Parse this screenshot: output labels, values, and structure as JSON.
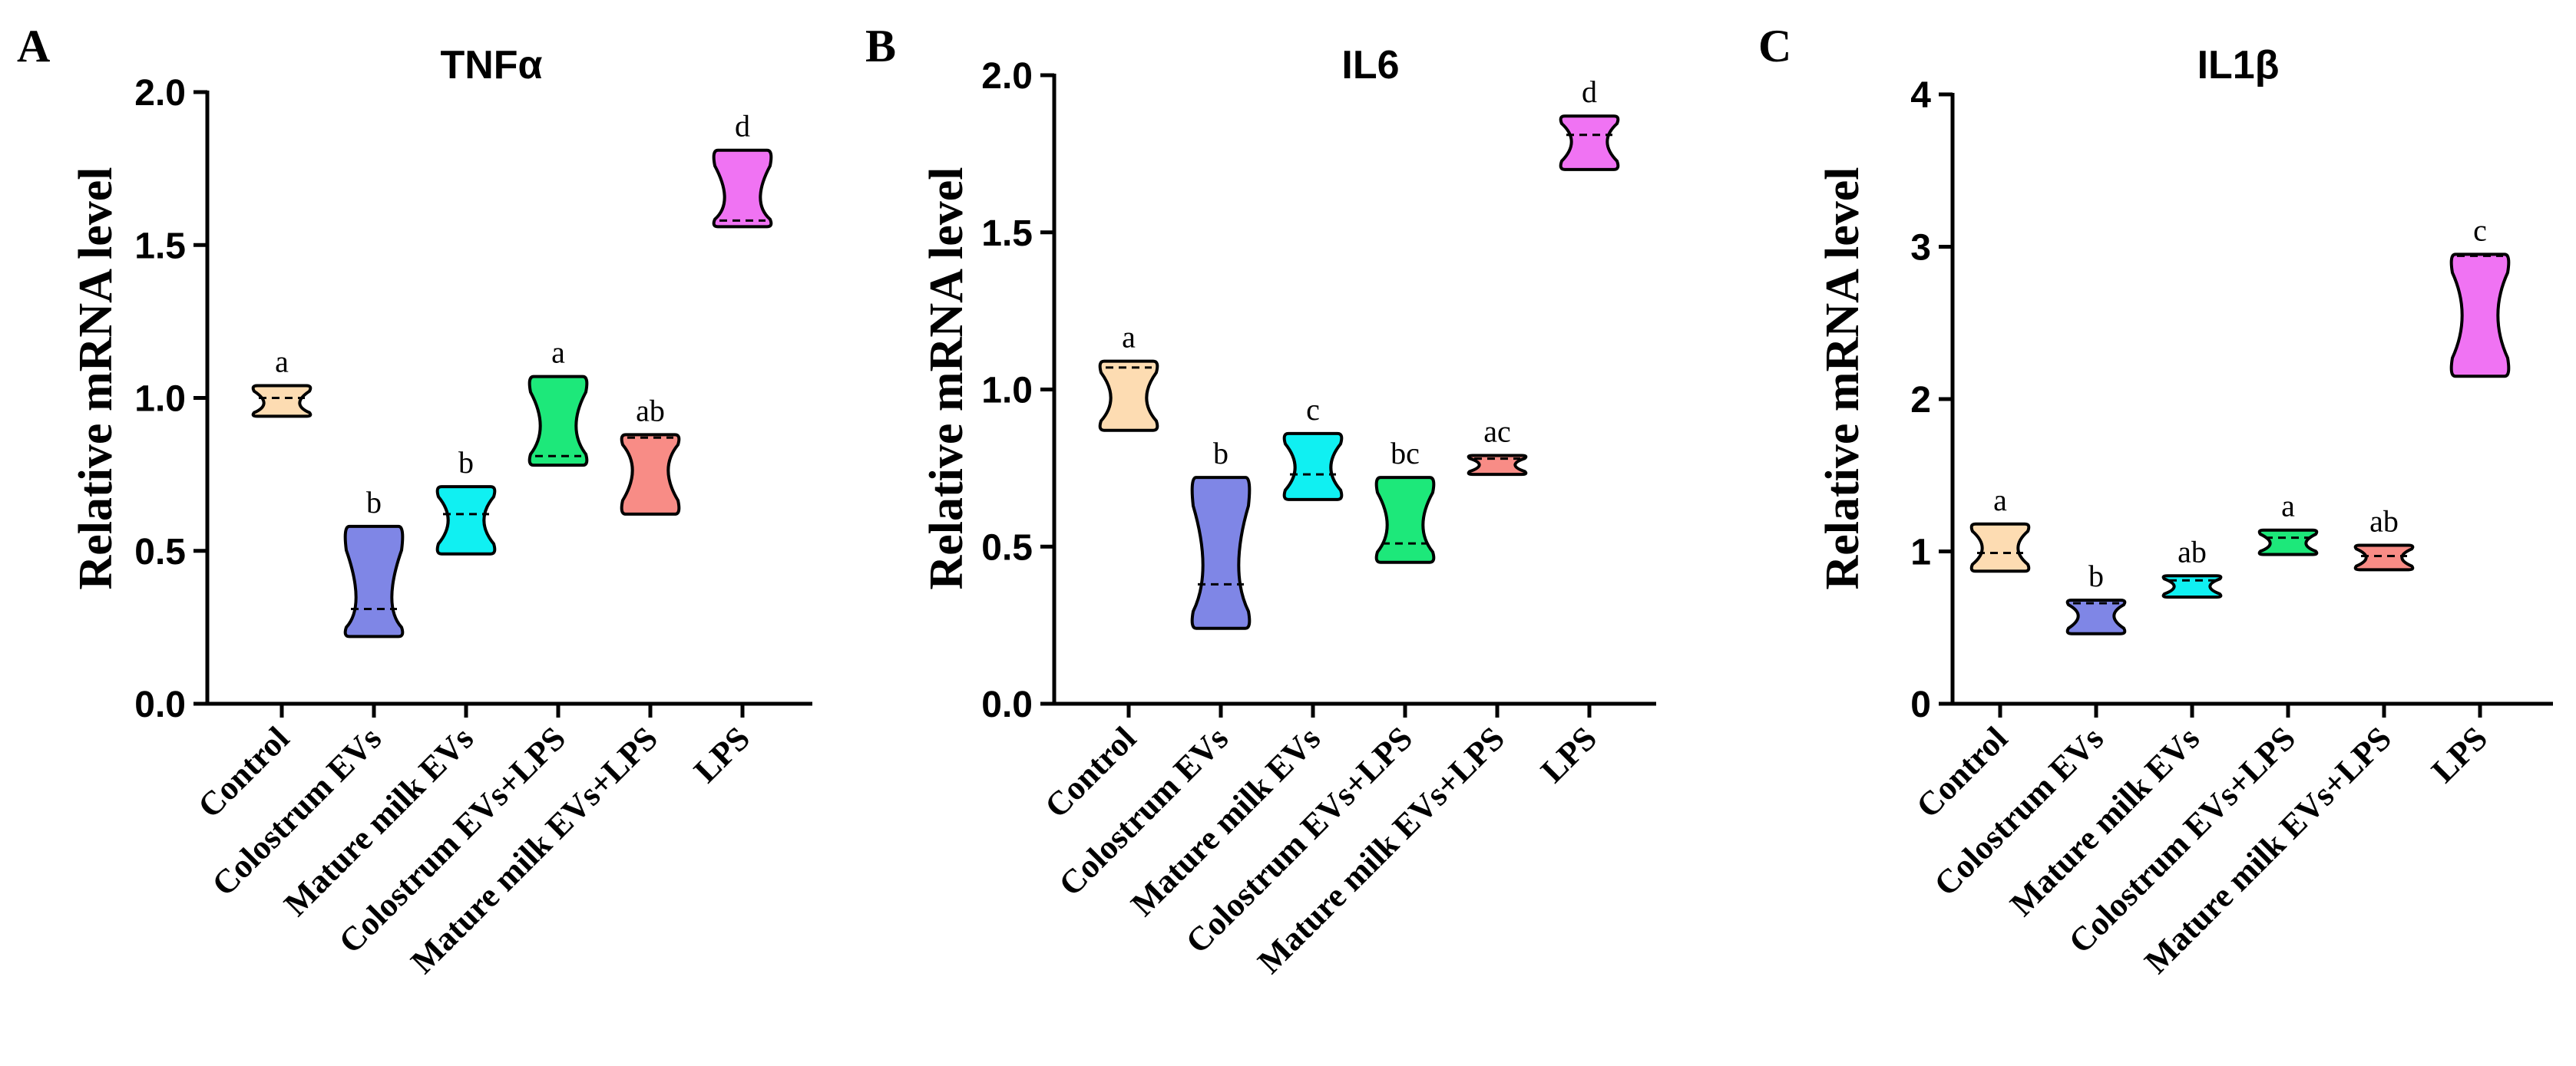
{
  "chart_data": [
    {
      "panel": "A",
      "type": "violin",
      "title": "TNFα",
      "ylabel": "Relative mRNA level",
      "ylim": [
        0,
        2.0
      ],
      "ticks": [
        0.0,
        0.5,
        1.0,
        1.5,
        2.0
      ],
      "tick_labels": [
        "0.0",
        "0.5",
        "1.0",
        "1.5",
        "2.0"
      ],
      "categories": [
        "Control",
        "Colostrum EVs",
        "Mature milk EVs",
        "Colostrum EVs+LPS",
        "Mature milk EVs+LPS",
        "LPS"
      ],
      "groups": [
        {
          "min": 0.94,
          "max": 1.04,
          "median": 1.0,
          "waist": 0.98,
          "sig": "a",
          "color": "#FDDCB2"
        },
        {
          "min": 0.22,
          "max": 0.58,
          "median": 0.31,
          "waist": 0.32,
          "sig": "b",
          "color": "#7F86E6"
        },
        {
          "min": 0.49,
          "max": 0.71,
          "median": 0.62,
          "waist": 0.6,
          "sig": "b",
          "color": "#10F0F2"
        },
        {
          "min": 0.78,
          "max": 1.07,
          "median": 0.81,
          "waist": 0.9,
          "sig": "a",
          "color": "#1DE87A"
        },
        {
          "min": 0.62,
          "max": 0.88,
          "median": 0.87,
          "waist": 0.77,
          "sig": "ab",
          "color": "#F88C86"
        },
        {
          "min": 1.56,
          "max": 1.81,
          "median": 1.58,
          "waist": 1.64,
          "sig": "d",
          "color": "#F073F3"
        }
      ]
    },
    {
      "panel": "B",
      "type": "violin",
      "title": "IL6",
      "ylabel": "Relative mRNA level",
      "ylim": [
        0,
        2.0
      ],
      "ticks": [
        0.0,
        0.5,
        1.0,
        1.5,
        2.0
      ],
      "tick_labels": [
        "0.0",
        "0.5",
        "1.0",
        "1.5",
        "2.0"
      ],
      "categories": [
        "Control",
        "Colostrum EVs",
        "Mature milk EVs",
        "Colostrum EVs+LPS",
        "Mature milk EVs+LPS",
        "LPS"
      ],
      "groups": [
        {
          "min": 0.87,
          "max": 1.09,
          "median": 1.07,
          "waist": 0.97,
          "sig": "a",
          "color": "#FDDCB2"
        },
        {
          "min": 0.24,
          "max": 0.72,
          "median": 0.38,
          "waist": 0.42,
          "sig": "b",
          "color": "#7F86E6"
        },
        {
          "min": 0.65,
          "max": 0.86,
          "median": 0.73,
          "waist": 0.75,
          "sig": "c",
          "color": "#10F0F2"
        },
        {
          "min": 0.45,
          "max": 0.72,
          "median": 0.51,
          "waist": 0.56,
          "sig": "bc",
          "color": "#1DE87A"
        },
        {
          "min": 0.73,
          "max": 0.79,
          "median": 0.78,
          "waist": 0.76,
          "sig": "ac",
          "color": "#F88C86"
        },
        {
          "min": 1.7,
          "max": 1.87,
          "median": 1.81,
          "waist": 1.79,
          "sig": "d",
          "color": "#F073F3"
        }
      ]
    },
    {
      "panel": "C",
      "type": "violin",
      "title": "IL1β",
      "ylabel": "Relative mRNA level",
      "ylim": [
        0,
        4
      ],
      "ticks": [
        0,
        1,
        2,
        3,
        4
      ],
      "tick_labels": [
        "0",
        "1",
        "2",
        "3",
        "4"
      ],
      "categories": [
        "Control",
        "Colostrum EVs",
        "Mature milk EVs",
        "Colostrum EVs+LPS",
        "Mature milk EVs+LPS",
        "LPS"
      ],
      "groups": [
        {
          "min": 0.87,
          "max": 1.18,
          "median": 0.99,
          "waist": 1.02,
          "sig": "a",
          "color": "#FDDCB2"
        },
        {
          "min": 0.46,
          "max": 0.68,
          "median": 0.66,
          "waist": 0.58,
          "sig": "b",
          "color": "#7F86E6"
        },
        {
          "min": 0.7,
          "max": 0.84,
          "median": 0.81,
          "waist": 0.77,
          "sig": "ab",
          "color": "#10F0F2"
        },
        {
          "min": 0.98,
          "max": 1.14,
          "median": 1.09,
          "waist": 1.05,
          "sig": "a",
          "color": "#1DE87A"
        },
        {
          "min": 0.88,
          "max": 1.04,
          "median": 0.97,
          "waist": 0.96,
          "sig": "ab",
          "color": "#F88C86"
        },
        {
          "min": 2.15,
          "max": 2.95,
          "median": 2.94,
          "waist": 2.55,
          "sig": "c",
          "color": "#F073F3"
        }
      ]
    }
  ]
}
